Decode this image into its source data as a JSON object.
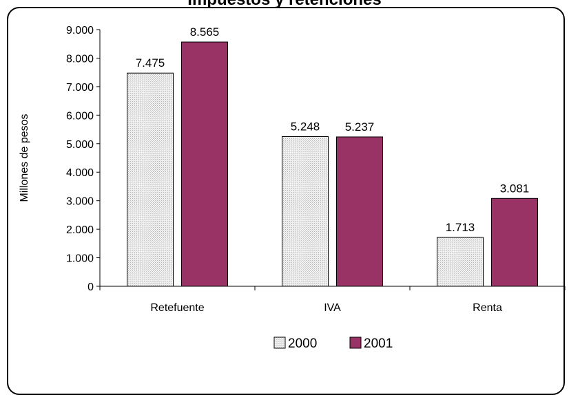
{
  "chart_data": {
    "type": "bar",
    "title": "Impuestos y retenciones",
    "ylabel": "Millones de pesos",
    "xlabel": "",
    "categories": [
      "Retefuente",
      "IVA",
      "Renta"
    ],
    "ylim": [
      0,
      9000
    ],
    "yticks": [
      0,
      1000,
      2000,
      3000,
      4000,
      5000,
      6000,
      7000,
      8000,
      9000
    ],
    "ytick_labels": [
      "0",
      "1.000",
      "2.000",
      "3.000",
      "4.000",
      "5.000",
      "6.000",
      "7.000",
      "8.000",
      "9.000"
    ],
    "series": [
      {
        "name": "2000",
        "values": [
          7475,
          5248,
          1713
        ],
        "labels": [
          "7.475",
          "5.248",
          "1.713"
        ],
        "color": "#e4e4e4",
        "pattern": "dotted"
      },
      {
        "name": "2001",
        "values": [
          8565,
          5237,
          3081
        ],
        "labels": [
          "8.565",
          "5.237",
          "3.081"
        ],
        "color": "#993366"
      }
    ],
    "legend": "bottom",
    "grid": false
  }
}
